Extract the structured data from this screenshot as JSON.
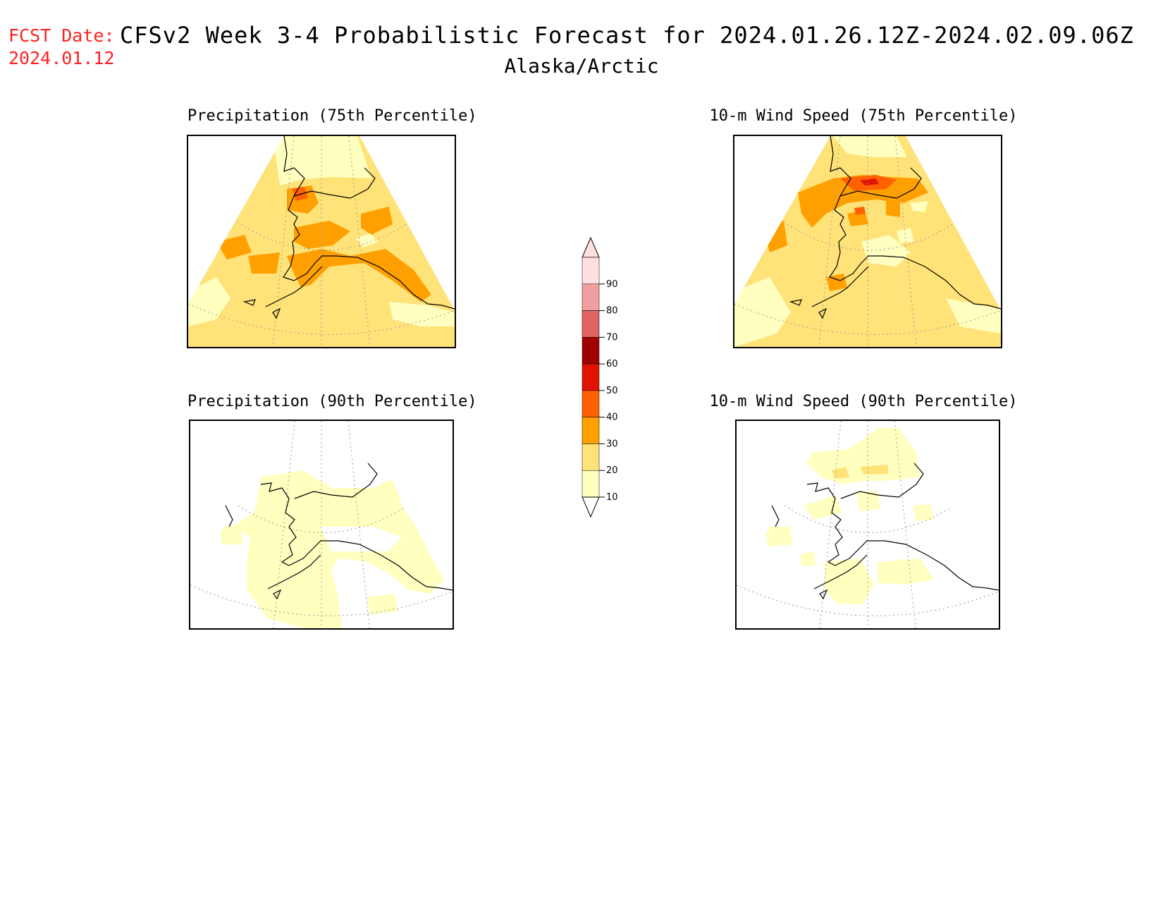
{
  "header": {
    "fcst_label": "FCST Date:",
    "fcst_date": "2024.01.12",
    "title": "CFSv2 Week 3-4 Probabilistic Forecast for 2024.01.26.12Z-2024.02.09.06Z",
    "subtitle": "Alaska/Arctic"
  },
  "panels": [
    {
      "title": "Precipitation (75th Percentile)",
      "field": "precipitation",
      "percentile": 75
    },
    {
      "title": "10-m Wind Speed (75th Percentile)",
      "field": "wind_speed_10m",
      "percentile": 75
    },
    {
      "title": "Precipitation (90th Percentile)",
      "field": "precipitation",
      "percentile": 90
    },
    {
      "title": "10-m Wind Speed (90th Percentile)",
      "field": "wind_speed_10m",
      "percentile": 90
    }
  ],
  "colorbar": {
    "ticks": [
      "10",
      "20",
      "30",
      "40",
      "50",
      "60",
      "70",
      "80",
      "90"
    ],
    "colors": {
      "c10": "#ffffc0",
      "c20": "#ffe278",
      "c30": "#ffa000",
      "c40": "#ff6000",
      "c50": "#e01400",
      "c60": "#a00000",
      "c70": "#e06464",
      "c80": "#f0a0a0",
      "c90": "#ffe0e0"
    }
  }
}
